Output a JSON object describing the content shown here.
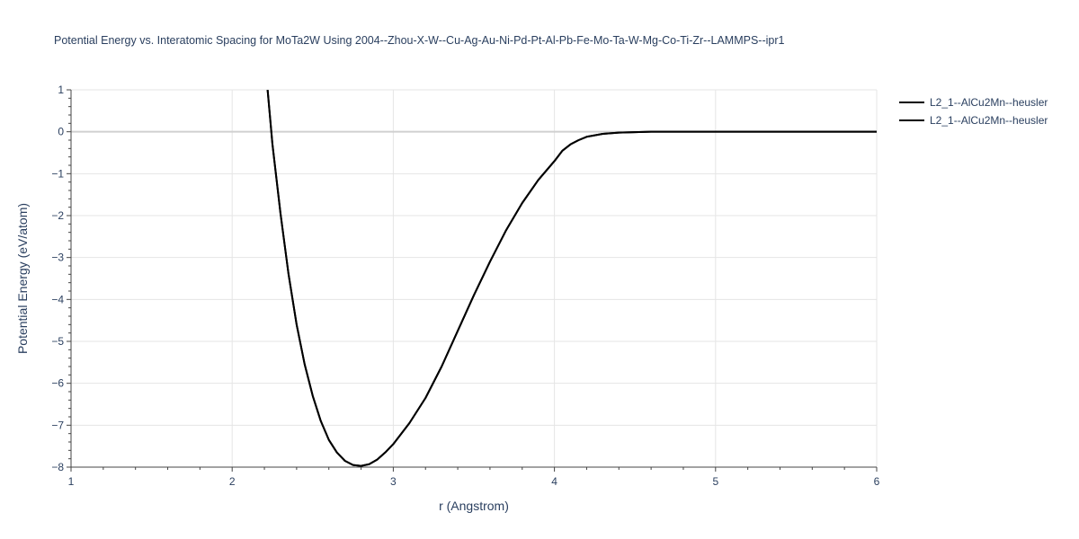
{
  "chart_data": {
    "type": "line",
    "title": "Potential Energy vs. Interatomic Spacing for MoTa2W Using 2004--Zhou-X-W--Cu-Ag-Au-Ni-Pd-Pt-Al-Pb-Fe-Mo-Ta-W-Mg-Co-Ti-Zr--LAMMPS--ipr1",
    "xlabel": "r (Angstrom)",
    "ylabel": "Potential Energy (eV/atom)",
    "xlim": [
      1,
      6
    ],
    "ylim": [
      -8,
      1
    ],
    "x_ticks": [
      1,
      2,
      3,
      4,
      5,
      6
    ],
    "y_ticks": [
      1,
      0,
      -1,
      -2,
      -3,
      -4,
      -5,
      -6,
      -7,
      -8
    ],
    "x_tick_labels": [
      "1",
      "2",
      "3",
      "4",
      "5",
      "6"
    ],
    "y_tick_labels": [
      "1",
      "0",
      "−1",
      "−2",
      "−3",
      "−4",
      "−5",
      "−6",
      "−7",
      "−8"
    ],
    "grid": true,
    "legend_position": "top-right",
    "series": [
      {
        "name": "L2_1--AlCu2Mn--heusler",
        "color": "#000000",
        "x": [
          2.22,
          2.25,
          2.3,
          2.35,
          2.4,
          2.45,
          2.5,
          2.55,
          2.6,
          2.65,
          2.7,
          2.75,
          2.8,
          2.85,
          2.9,
          2.95,
          3.0,
          3.1,
          3.2,
          3.3,
          3.4,
          3.5,
          3.6,
          3.7,
          3.8,
          3.9,
          4.0,
          4.05,
          4.1,
          4.15,
          4.2,
          4.3,
          4.4,
          4.5,
          4.6,
          5.0,
          5.5,
          6.0
        ],
        "y": [
          1.0,
          -0.3,
          -1.95,
          -3.4,
          -4.6,
          -5.55,
          -6.3,
          -6.9,
          -7.35,
          -7.65,
          -7.85,
          -7.95,
          -7.97,
          -7.93,
          -7.82,
          -7.65,
          -7.45,
          -6.95,
          -6.35,
          -5.6,
          -4.75,
          -3.9,
          -3.1,
          -2.35,
          -1.7,
          -1.15,
          -0.7,
          -0.45,
          -0.3,
          -0.2,
          -0.12,
          -0.05,
          -0.02,
          -0.01,
          0.0,
          0.0,
          0.0,
          0.0
        ]
      },
      {
        "name": "L2_1--AlCu2Mn--heusler",
        "color": "#000000",
        "x": [
          2.22,
          2.25,
          2.3,
          2.35,
          2.4,
          2.45,
          2.5,
          2.55,
          2.6,
          2.65,
          2.7,
          2.75,
          2.8,
          2.85,
          2.9,
          2.95,
          3.0,
          3.1,
          3.2,
          3.3,
          3.4,
          3.5,
          3.6,
          3.7,
          3.8,
          3.9,
          4.0,
          4.05,
          4.1,
          4.15,
          4.2,
          4.3,
          4.4,
          4.5,
          4.6,
          5.0,
          5.5,
          6.0
        ],
        "y": [
          1.0,
          -0.3,
          -1.95,
          -3.4,
          -4.6,
          -5.55,
          -6.3,
          -6.9,
          -7.35,
          -7.65,
          -7.85,
          -7.95,
          -7.97,
          -7.93,
          -7.82,
          -7.65,
          -7.45,
          -6.95,
          -6.35,
          -5.6,
          -4.75,
          -3.9,
          -3.1,
          -2.35,
          -1.7,
          -1.15,
          -0.7,
          -0.45,
          -0.3,
          -0.2,
          -0.12,
          -0.05,
          -0.02,
          -0.01,
          0.0,
          0.0,
          0.0,
          0.0
        ]
      }
    ]
  }
}
